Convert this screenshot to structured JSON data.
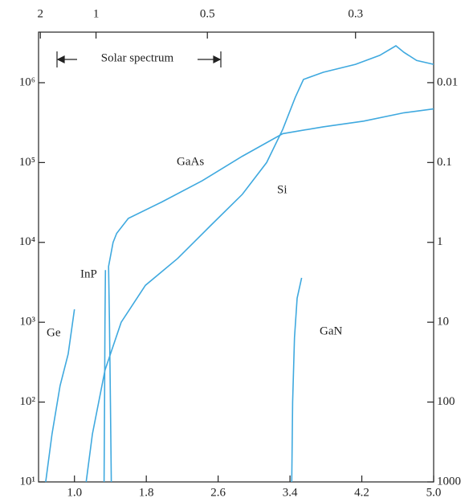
{
  "chart_data": {
    "type": "line",
    "annotation": "Solar spectrum",
    "xlim": [
      0.6,
      5.0
    ],
    "xticks": [
      {
        "value": 1.0,
        "label": "1.0"
      },
      1.8,
      2.6,
      3.4,
      4.2,
      {
        "value": 5.0,
        "label": "5.0"
      }
    ],
    "x2ticks": [
      {
        "value": 0.62,
        "label": "2"
      },
      {
        "value": 1.24,
        "label": "1"
      },
      {
        "value": 2.48,
        "label": "0.5"
      },
      {
        "value": 4.13,
        "label": "0.3"
      }
    ],
    "ylim": [
      10,
      4300000
    ],
    "yscale": "log",
    "yticks": [
      {
        "value": 10,
        "label": "10¹"
      },
      {
        "value": 100,
        "label": "10²"
      },
      {
        "value": 1000,
        "label": "10³"
      },
      {
        "value": 10000,
        "label": "10⁴"
      },
      {
        "value": 100000,
        "label": "10⁵"
      },
      {
        "value": 1000000,
        "label": "10⁶"
      }
    ],
    "y2lim": [
      1000,
      0.00233
    ],
    "y2scale": "log",
    "y2ticks": [
      0.01,
      0.1,
      1,
      10,
      100,
      1000
    ],
    "series": [
      {
        "name": "Ge",
        "color": "#3fa9df",
        "x": [
          0.68,
          0.75,
          0.84,
          0.93,
          1.0
        ],
        "values": [
          10,
          40,
          160,
          400,
          1450
        ]
      },
      {
        "name": "InP",
        "color": "#3fa9df",
        "x": [
          1.33,
          1.335,
          1.34,
          1.345
        ],
        "values": [
          10,
          100,
          1000,
          4500
        ]
      },
      {
        "name": "GaAs",
        "color": "#3fa9df",
        "x": [
          1.41,
          1.4,
          1.39,
          1.38,
          1.43,
          1.47,
          1.6,
          1.97,
          2.42,
          2.87,
          3.32,
          3.77,
          4.22,
          4.67,
          5.0
        ],
        "values": [
          10,
          100,
          1000,
          5000,
          10000,
          13000,
          20000,
          32000,
          59000,
          120000,
          230000,
          280000,
          330000,
          420000,
          470000
        ]
      },
      {
        "name": "Si",
        "color": "#3fa9df",
        "x": [
          1.13,
          1.2,
          1.34,
          1.52,
          1.79,
          2.15,
          2.51,
          2.87,
          3.14,
          3.32,
          3.46,
          3.55,
          3.77,
          4.13,
          4.4,
          4.58,
          4.67,
          4.81,
          5.0
        ],
        "values": [
          10,
          40,
          250,
          1000,
          2900,
          6300,
          16000,
          40000,
          100000,
          260000,
          660000,
          1100000,
          1350000,
          1700000,
          2200000,
          2900000,
          2400000,
          1900000,
          1700000
        ]
      },
      {
        "name": "GaN",
        "color": "#3fa9df",
        "x": [
          3.42,
          3.43,
          3.45,
          3.48,
          3.53
        ],
        "values": [
          10,
          100,
          640,
          2000,
          3600
        ]
      }
    ]
  }
}
